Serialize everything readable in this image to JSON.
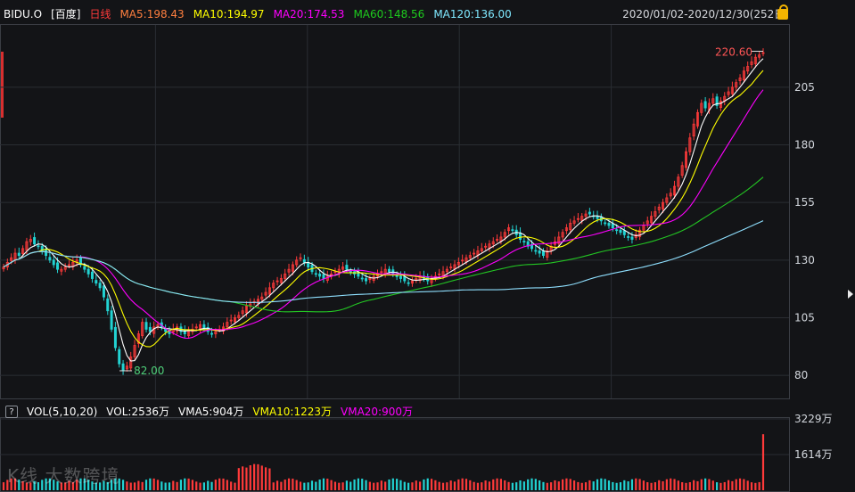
{
  "header": {
    "ticker": "BIDU.O",
    "name": "[百度]",
    "period": "日线",
    "ma5": "MA5:198.43",
    "ma10": "MA10:194.97",
    "ma20": "MA20:174.53",
    "ma60": "MA60:148.56",
    "ma120": "MA120:136.00",
    "range": "2020/01/02-2020/12/30(252日)"
  },
  "volume_panel": {
    "help": "?",
    "label": "VOL(5,10,20)",
    "vol": "VOL:2536万",
    "vma5": "VMA5:904万",
    "vma10": "VMA10:1223万",
    "vma20": "VMA20:900万"
  },
  "watermark": "K线 大数跨境",
  "colors": {
    "up": "#ff3a3a",
    "down": "#22d3d3",
    "ma5": "#ffffff",
    "ma10": "#ffff00",
    "ma20": "#ff00ff",
    "ma60": "#23c623",
    "ma120": "#8fe0ff",
    "grid": "#2a2d33"
  },
  "chart_data": {
    "type": "candlestick",
    "title": "",
    "xlabel": "",
    "ylabel": "",
    "ylim": [
      70,
      232
    ],
    "yticks": [
      80,
      105,
      130,
      155,
      180,
      205
    ],
    "annotations": {
      "high_label": "220.60",
      "high_value": 220.6,
      "low_label": "82.00",
      "low_value": 82.0
    },
    "grid": true,
    "legend": "top-left",
    "price_series": [
      127,
      129,
      131,
      133,
      132,
      135,
      138,
      139,
      137,
      136,
      134,
      132,
      130,
      128,
      126,
      126,
      127,
      128,
      129,
      130,
      128,
      126,
      124,
      122,
      120,
      118,
      114,
      108,
      100,
      92,
      85,
      82,
      84,
      88,
      93,
      98,
      103,
      100,
      99,
      101,
      102,
      101,
      99,
      98,
      100,
      101,
      99,
      98,
      99,
      100,
      101,
      102,
      100,
      99,
      98,
      99,
      100,
      101,
      103,
      104,
      105,
      106,
      108,
      110,
      111,
      112,
      113,
      114,
      116,
      118,
      120,
      121,
      122,
      124,
      126,
      128,
      130,
      131,
      129,
      127,
      125,
      124,
      123,
      122,
      123,
      124,
      125,
      126,
      127,
      126,
      125,
      124,
      123,
      122,
      121,
      122,
      123,
      124,
      125,
      126,
      125,
      124,
      123,
      122,
      121,
      120,
      121,
      122,
      123,
      122,
      121,
      122,
      123,
      124,
      125,
      126,
      127,
      128,
      129,
      130,
      131,
      132,
      133,
      134,
      135,
      136,
      137,
      138,
      139,
      140,
      142,
      144,
      143,
      141,
      139,
      138,
      136,
      135,
      134,
      133,
      132,
      134,
      136,
      138,
      140,
      142,
      144,
      146,
      147,
      148,
      149,
      150,
      150,
      149,
      148,
      147,
      146,
      145,
      144,
      143,
      142,
      141,
      140,
      139,
      141,
      143,
      145,
      147,
      149,
      151,
      153,
      155,
      157,
      159,
      162,
      166,
      171,
      177,
      183,
      189,
      194,
      198,
      196,
      198,
      200,
      197,
      199,
      201,
      203,
      205,
      207,
      209,
      212,
      214,
      216,
      218,
      219,
      220
    ],
    "volume": {
      "label": "VOL(5,10,20)",
      "yticks": [
        1614,
        3229
      ],
      "units": "万",
      "max": 3229
    }
  }
}
